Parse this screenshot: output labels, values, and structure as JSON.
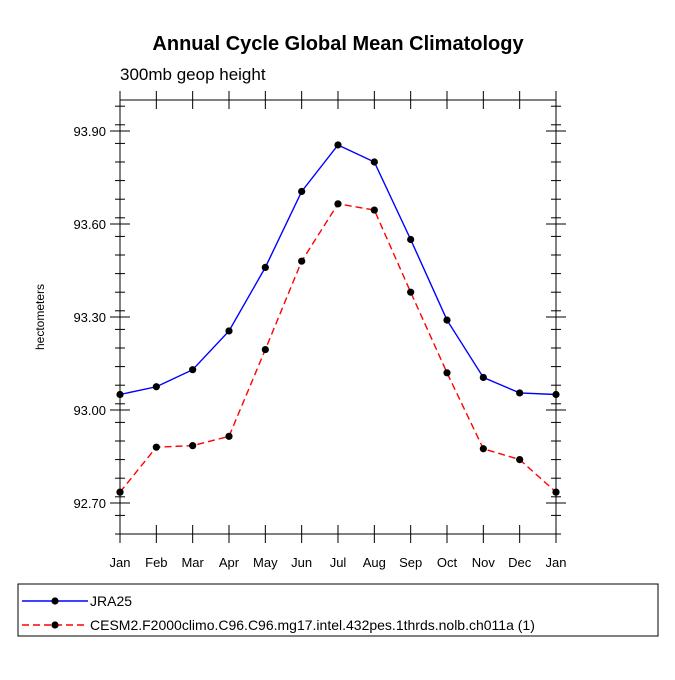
{
  "chart_data": {
    "type": "line",
    "title": "Annual Cycle Global Mean Climatology",
    "subtitle": "300mb geop height",
    "xlabel": "",
    "ylabel": "hectometers",
    "categories": [
      "Jan",
      "Feb",
      "Mar",
      "Apr",
      "May",
      "Jun",
      "Jul",
      "Aug",
      "Sep",
      "Oct",
      "Nov",
      "Dec",
      "Jan"
    ],
    "ylim": [
      92.6,
      94.0
    ],
    "y_ticks": [
      "92.70",
      "93.00",
      "93.30",
      "93.60",
      "93.90"
    ],
    "grid": false,
    "legend_position": "bottom",
    "series": [
      {
        "name": "JRA25",
        "color": "#0000ff",
        "line_style": "solid",
        "marker": "filled-circle",
        "values": [
          93.05,
          93.075,
          93.13,
          93.255,
          93.46,
          93.705,
          93.855,
          93.8,
          93.55,
          93.29,
          93.105,
          93.055,
          93.05
        ]
      },
      {
        "name": "CESM2.F2000climo.C96.C96.mg17.intel.432pes.1thrds.nolb.ch011a (1)",
        "color": "#ff0000",
        "line_style": "dashed",
        "marker": "filled-circle",
        "values": [
          92.735,
          92.88,
          92.885,
          92.915,
          93.195,
          93.48,
          93.665,
          93.645,
          93.38,
          93.12,
          92.875,
          92.84,
          92.735
        ]
      }
    ]
  }
}
